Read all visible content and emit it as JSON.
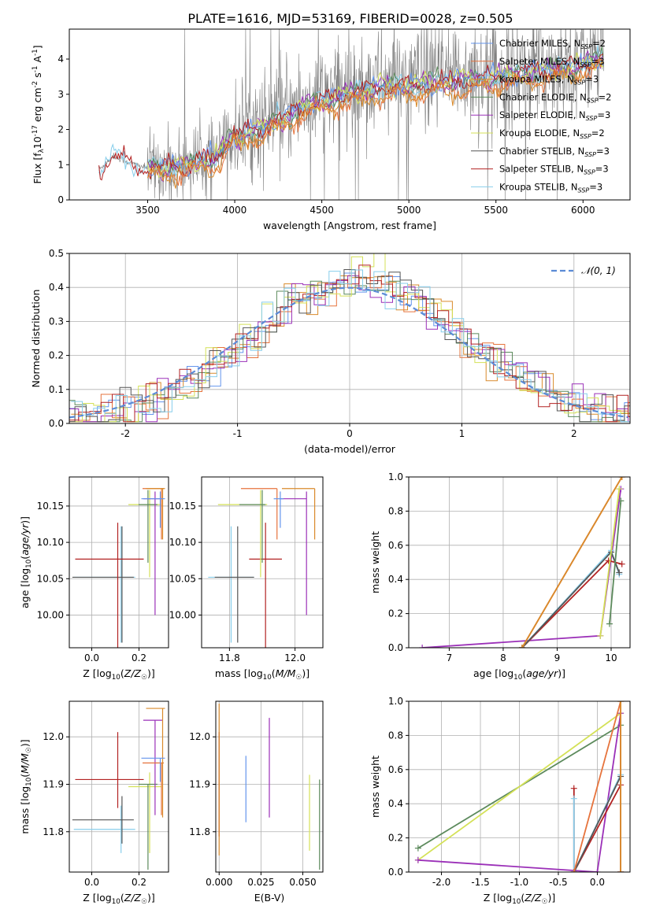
{
  "figure_title": "PLATE=1616, MJD=53169, FIBERID=0028, z=0.505",
  "colors": {
    "chabrier_miles": "#6495ed",
    "salpeter_miles": "#e6733c",
    "kroupa_miles": "#d98a2b",
    "chabrier_elodie": "#5c8a5c",
    "salpeter_elodie": "#9b30b8",
    "kroupa_elodie": "#d4e157",
    "chabrier_stelib": "#555555",
    "salpeter_stelib": "#b22222",
    "kroupa_stelib": "#87ceeb",
    "observed": "#808080",
    "gaussian": "#5b8bd6",
    "grid": "#b0b0b0"
  },
  "chart_data": [
    {
      "type": "line",
      "id": "spectrum",
      "xlabel": "wavelength [Angstrom, rest frame]",
      "ylabel": "Flux [f_λ10^-17 erg cm^-2 s^-1 A^-1]",
      "xlim": [
        3050,
        6270
      ],
      "ylim": [
        0,
        4.85
      ],
      "xticks": [
        3500,
        4000,
        4500,
        5000,
        5500,
        6000
      ],
      "yticks": [
        0,
        1,
        2,
        3,
        4
      ],
      "grid": false,
      "legend_position": "top-right",
      "legend": [
        {
          "label": "Chabrier MILES, N",
          "sub": "SSP",
          "n": "=2",
          "color_key": "chabrier_miles"
        },
        {
          "label": "Salpeter MILES, N",
          "sub": "SSP",
          "n": "=3",
          "color_key": "salpeter_miles"
        },
        {
          "label": "Kroupa MILES, N",
          "sub": "SSP",
          "n": "=3",
          "color_key": "kroupa_miles"
        },
        {
          "label": "Chabrier ELODIE, N",
          "sub": "SSP",
          "n": "=2",
          "color_key": "chabrier_elodie"
        },
        {
          "label": "Salpeter ELODIE, N",
          "sub": "SSP",
          "n": "=3",
          "color_key": "salpeter_elodie"
        },
        {
          "label": "Kroupa ELODIE, N",
          "sub": "SSP",
          "n": "=2",
          "color_key": "kroupa_elodie"
        },
        {
          "label": "Chabrier STELIB, N",
          "sub": "SSP",
          "n": "=3",
          "color_key": "chabrier_stelib"
        },
        {
          "label": "Salpeter STELIB, N",
          "sub": "SSP",
          "n": "=3",
          "color_key": "salpeter_stelib"
        },
        {
          "label": "Kroupa STELIB, N",
          "sub": "SSP",
          "n": "=3",
          "color_key": "kroupa_stelib"
        }
      ],
      "spectrum_start": 3220,
      "spectrum_end": 6120,
      "continuum_anchors": [
        [
          3220,
          0.85
        ],
        [
          3300,
          1.25
        ],
        [
          3400,
          1.05
        ],
        [
          3500,
          0.9
        ],
        [
          3700,
          1.0
        ],
        [
          3900,
          1.25
        ],
        [
          4000,
          1.9
        ],
        [
          4200,
          2.3
        ],
        [
          4400,
          2.8
        ],
        [
          4600,
          3.1
        ],
        [
          4800,
          3.35
        ],
        [
          5000,
          3.4
        ],
        [
          5200,
          3.5
        ],
        [
          5400,
          3.6
        ],
        [
          5600,
          3.7
        ],
        [
          5800,
          3.85
        ],
        [
          6000,
          4.0
        ],
        [
          6120,
          4.2
        ]
      ]
    },
    {
      "type": "line",
      "id": "residuals",
      "xlabel": "(data-model)/error",
      "ylabel": "Normed distribution",
      "xlim": [
        -2.5,
        2.5
      ],
      "ylim": [
        0,
        0.5
      ],
      "xticks": [
        -2,
        -1,
        0,
        1,
        2
      ],
      "yticks": [
        0.0,
        0.1,
        0.2,
        0.3,
        0.4,
        0.5
      ],
      "grid": true,
      "legend_position": "top-right",
      "gaussian_label": "𝒩(0, 1)",
      "bin_width": 0.1,
      "profile_mean": 0.1,
      "profile_sigma": 0.95,
      "profile_peak": 0.42
    },
    {
      "type": "scatter",
      "id": "age_vs_Z",
      "xlabel": "Z [log10(Z/Z☉)]",
      "ylabel": "age  [log10(age/yr)]",
      "xlim": [
        -0.095,
        0.325
      ],
      "ylim": [
        9.955,
        10.19
      ],
      "xticks": [
        0.0,
        0.2
      ],
      "yticks": [
        10.0,
        10.05,
        10.1,
        10.15
      ],
      "grid": true,
      "points": [
        {
          "x": 0.124,
          "y": 10.052,
          "xerr": [
            0.2,
            0.06
          ],
          "yerr": [
            0.09,
            0.07
          ],
          "color_key": "kroupa_stelib"
        },
        {
          "x": 0.128,
          "y": 10.052,
          "xerr": [
            0.21,
            0.05
          ],
          "yerr": [
            0.09,
            0.07
          ],
          "color_key": "chabrier_stelib"
        },
        {
          "x": 0.11,
          "y": 10.077,
          "xerr": [
            0.18,
            0.11
          ],
          "yerr": [
            0.14,
            0.05
          ],
          "color_key": "salpeter_stelib"
        },
        {
          "x": 0.245,
          "y": 10.152,
          "xerr": [
            0.09,
            0.05
          ],
          "yerr": [
            0.1,
            0.02
          ],
          "color_key": "kroupa_elodie"
        },
        {
          "x": 0.238,
          "y": 10.152,
          "xerr": [
            0.04,
            0.04
          ],
          "yerr": [
            0.08,
            0.02
          ],
          "color_key": "chabrier_elodie"
        },
        {
          "x": 0.268,
          "y": 10.16,
          "xerr": [
            0.05,
            0.03
          ],
          "yerr": [
            0.16,
            0.01
          ],
          "color_key": "salpeter_elodie"
        },
        {
          "x": 0.295,
          "y": 10.174,
          "xerr": [
            0.08,
            0.01
          ],
          "yerr": [
            0.07,
            0.0
          ],
          "color_key": "salpeter_miles"
        },
        {
          "x": 0.3,
          "y": 10.174,
          "xerr": [
            0.07,
            0.01
          ],
          "yerr": [
            0.07,
            0.0
          ],
          "color_key": "kroupa_miles"
        },
        {
          "x": 0.29,
          "y": 10.16,
          "xerr": [
            0.08,
            0.02
          ],
          "yerr": [
            0.04,
            0.01
          ],
          "color_key": "chabrier_miles"
        }
      ]
    },
    {
      "type": "scatter",
      "id": "age_vs_mass",
      "xlabel": "mass [log10(M/M☉)]",
      "ylabel": "",
      "xlim": [
        11.715,
        12.085
      ],
      "ylim": [
        9.955,
        10.19
      ],
      "xticks": [
        11.8,
        12.0
      ],
      "yticks": [
        10.0,
        10.05,
        10.1,
        10.15
      ],
      "grid": true,
      "points": [
        {
          "x": 11.805,
          "y": 10.052,
          "xerr": [
            0.07,
            0.07
          ],
          "yerr": [
            0.09,
            0.07
          ],
          "color_key": "kroupa_stelib"
        },
        {
          "x": 11.825,
          "y": 10.052,
          "xerr": [
            0.07,
            0.05
          ],
          "yerr": [
            0.09,
            0.07
          ],
          "color_key": "chabrier_stelib"
        },
        {
          "x": 11.91,
          "y": 10.077,
          "xerr": [
            0.05,
            0.05
          ],
          "yerr": [
            0.14,
            0.05
          ],
          "color_key": "salpeter_stelib"
        },
        {
          "x": 11.895,
          "y": 10.152,
          "xerr": [
            0.13,
            0.02
          ],
          "yerr": [
            0.1,
            0.02
          ],
          "color_key": "kroupa_elodie"
        },
        {
          "x": 11.9,
          "y": 10.152,
          "xerr": [
            0.07,
            0.01
          ],
          "yerr": [
            0.08,
            0.02
          ],
          "color_key": "chabrier_elodie"
        },
        {
          "x": 12.035,
          "y": 10.16,
          "xerr": [
            0.08,
            0.0
          ],
          "yerr": [
            0.16,
            0.01
          ],
          "color_key": "salpeter_elodie"
        },
        {
          "x": 11.945,
          "y": 10.174,
          "xerr": [
            0.11,
            0.0
          ],
          "yerr": [
            0.07,
            0.0
          ],
          "color_key": "salpeter_miles"
        },
        {
          "x": 12.06,
          "y": 10.174,
          "xerr": [
            0.1,
            0.0
          ],
          "yerr": [
            0.07,
            0.0
          ],
          "color_key": "kroupa_miles"
        },
        {
          "x": 11.955,
          "y": 10.16,
          "xerr": [
            0.02,
            0.01
          ],
          "yerr": [
            0.04,
            0.01
          ],
          "color_key": "chabrier_miles"
        }
      ]
    },
    {
      "type": "line",
      "id": "massweight_vs_age",
      "xlabel": "age  [log10(age/yr)]",
      "ylabel": "mass weight",
      "xlim": [
        6.25,
        10.35
      ],
      "ylim": [
        0,
        1.0
      ],
      "xticks": [
        7,
        8,
        9,
        10
      ],
      "yticks": [
        0.0,
        0.2,
        0.4,
        0.6,
        0.8,
        1.0
      ],
      "grid": true,
      "series": [
        {
          "color_key": "salpeter_elodie",
          "x": [
            6.5,
            9.8,
            10.18
          ],
          "y": [
            0.0,
            0.07,
            0.93
          ]
        },
        {
          "color_key": "salpeter_stelib",
          "x": [
            8.35,
            9.95,
            10.2
          ],
          "y": [
            0.0,
            0.51,
            0.49
          ]
        },
        {
          "color_key": "kroupa_stelib",
          "x": [
            8.35,
            10.0,
            10.15
          ],
          "y": [
            0.0,
            0.57,
            0.43
          ]
        },
        {
          "color_key": "chabrier_stelib",
          "x": [
            8.35,
            10.0,
            10.15
          ],
          "y": [
            0.0,
            0.56,
            0.44
          ]
        },
        {
          "color_key": "chabrier_elodie",
          "x": [
            9.97,
            10.18
          ],
          "y": [
            0.14,
            0.86
          ]
        },
        {
          "color_key": "kroupa_elodie",
          "x": [
            9.8,
            10.15
          ],
          "y": [
            0.07,
            0.93
          ]
        },
        {
          "color_key": "salpeter_miles",
          "x": [
            8.35,
            10.2
          ],
          "y": [
            0.0,
            1.0
          ]
        },
        {
          "color_key": "kroupa_miles",
          "x": [
            8.35,
            10.2
          ],
          "y": [
            0.0,
            1.0
          ]
        }
      ]
    },
    {
      "type": "scatter",
      "id": "mass_vs_Z",
      "xlabel": "Z [log10(Z/Z☉)]",
      "ylabel": "mass [log10(M/M☉)]",
      "xlim": [
        -0.095,
        0.325
      ],
      "ylim": [
        11.715,
        12.075
      ],
      "xticks": [
        0.0,
        0.2
      ],
      "yticks": [
        11.8,
        11.9,
        12.0
      ],
      "grid": true,
      "points": [
        {
          "x": 0.124,
          "y": 11.805,
          "xerr": [
            0.2,
            0.06
          ],
          "yerr": [
            0.05,
            0.05
          ],
          "color_key": "kroupa_stelib"
        },
        {
          "x": 0.128,
          "y": 11.825,
          "xerr": [
            0.21,
            0.05
          ],
          "yerr": [
            0.05,
            0.05
          ],
          "color_key": "chabrier_stelib"
        },
        {
          "x": 0.11,
          "y": 11.91,
          "xerr": [
            0.18,
            0.11
          ],
          "yerr": [
            0.06,
            0.1
          ],
          "color_key": "salpeter_stelib"
        },
        {
          "x": 0.245,
          "y": 11.895,
          "xerr": [
            0.09,
            0.05
          ],
          "yerr": [
            0.14,
            0.03
          ],
          "color_key": "kroupa_elodie"
        },
        {
          "x": 0.238,
          "y": 11.9,
          "xerr": [
            0.04,
            0.04
          ],
          "yerr": [
            0.18,
            0.0
          ],
          "color_key": "chabrier_elodie"
        },
        {
          "x": 0.268,
          "y": 12.035,
          "xerr": [
            0.05,
            0.03
          ],
          "yerr": [
            0.2,
            0.0
          ],
          "color_key": "salpeter_elodie"
        },
        {
          "x": 0.295,
          "y": 11.945,
          "xerr": [
            0.08,
            0.01
          ],
          "yerr": [
            0.11,
            0.0
          ],
          "color_key": "salpeter_miles"
        },
        {
          "x": 0.3,
          "y": 12.06,
          "xerr": [
            0.07,
            0.01
          ],
          "yerr": [
            0.23,
            0.0
          ],
          "color_key": "kroupa_miles"
        },
        {
          "x": 0.29,
          "y": 11.955,
          "xerr": [
            0.08,
            0.02
          ],
          "yerr": [
            0.05,
            0.0
          ],
          "color_key": "chabrier_miles"
        }
      ]
    },
    {
      "type": "scatter",
      "id": "mass_vs_ebv",
      "xlabel": "E(B-V)",
      "ylabel": "",
      "xlim": [
        -0.002,
        0.062
      ],
      "ylim": [
        11.715,
        12.075
      ],
      "xticks": [
        0.0,
        0.025,
        0.05
      ],
      "yticks": [
        11.8,
        11.9,
        12.0
      ],
      "grid": true,
      "points": [
        {
          "x": 0.0,
          "y": 11.9,
          "xerr": [
            0,
            0
          ],
          "yerr": [
            0.11,
            0.11
          ],
          "color_key": "salpeter_stelib"
        },
        {
          "x": 0.0,
          "y": 11.92,
          "xerr": [
            0,
            0
          ],
          "yerr": [
            0.17,
            0.15
          ],
          "color_key": "kroupa_miles"
        },
        {
          "x": 0.016,
          "y": 11.89,
          "xerr": [
            0,
            0
          ],
          "yerr": [
            0.07,
            0.07
          ],
          "color_key": "chabrier_miles"
        },
        {
          "x": 0.03,
          "y": 11.94,
          "xerr": [
            0,
            0
          ],
          "yerr": [
            0.11,
            0.1
          ],
          "color_key": "salpeter_elodie"
        },
        {
          "x": 0.054,
          "y": 11.84,
          "xerr": [
            0,
            0
          ],
          "yerr": [
            0.08,
            0.08
          ],
          "color_key": "kroupa_elodie"
        },
        {
          "x": 0.06,
          "y": 11.81,
          "xerr": [
            0,
            0
          ],
          "yerr": [
            0.09,
            0.1
          ],
          "color_key": "chabrier_elodie"
        }
      ]
    },
    {
      "type": "line",
      "id": "massweight_vs_Z",
      "xlabel": "Z [log10(Z/Z☉)]",
      "ylabel": "mass weight",
      "xlim": [
        -2.42,
        0.42
      ],
      "ylim": [
        0,
        1.0
      ],
      "xticks": [
        -2.0,
        -1.5,
        -1.0,
        -0.5,
        0.0
      ],
      "yticks": [
        0.0,
        0.2,
        0.4,
        0.6,
        0.8,
        1.0
      ],
      "grid": true,
      "series": [
        {
          "color_key": "chabrier_elodie",
          "x": [
            -2.3,
            0.3
          ],
          "y": [
            0.14,
            0.86
          ]
        },
        {
          "color_key": "kroupa_elodie",
          "x": [
            -2.3,
            0.3
          ],
          "y": [
            0.07,
            0.93
          ]
        },
        {
          "color_key": "salpeter_elodie",
          "x": [
            -2.3,
            0.0,
            0.3,
            0.3
          ],
          "y": [
            0.07,
            0.0,
            0.93,
            0.0
          ]
        },
        {
          "color_key": "salpeter_stelib",
          "x": [
            -0.3,
            -0.3,
            0.3,
            0.3
          ],
          "y": [
            0.49,
            0.0,
            0.51,
            0.0
          ]
        },
        {
          "color_key": "kroupa_stelib",
          "x": [
            -0.3,
            -0.3,
            0.3,
            0.3
          ],
          "y": [
            0.43,
            0.0,
            0.57,
            0.0
          ]
        },
        {
          "color_key": "chabrier_stelib",
          "x": [
            -0.3,
            0.3
          ],
          "y": [
            0.0,
            0.56
          ]
        },
        {
          "color_key": "salpeter_miles",
          "x": [
            -0.3,
            0.3,
            0.3
          ],
          "y": [
            0.0,
            1.0,
            0.0
          ]
        },
        {
          "color_key": "kroupa_miles",
          "x": [
            0.3,
            0.3
          ],
          "y": [
            0.0,
            1.0
          ]
        }
      ]
    }
  ]
}
